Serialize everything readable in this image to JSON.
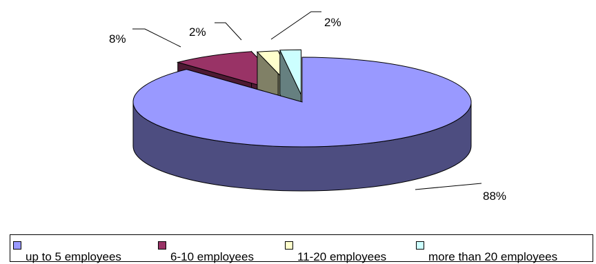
{
  "chart_data": {
    "type": "pie",
    "title": "",
    "three_d": true,
    "exploded": true,
    "legend_position": "bottom",
    "categories": [
      "up to 5 employees",
      "6-10 employees",
      "11-20 employees",
      "more than 20 employees"
    ],
    "values": [
      88,
      8,
      2,
      2
    ],
    "data_labels": [
      "88%",
      "8%",
      "2%",
      "2%"
    ],
    "colors": [
      "#9999ff",
      "#993366",
      "#ffffcc",
      "#ccffff"
    ],
    "side_colors": [
      "#4d4d80",
      "#4d1a33",
      "#808066",
      "#668080"
    ]
  }
}
